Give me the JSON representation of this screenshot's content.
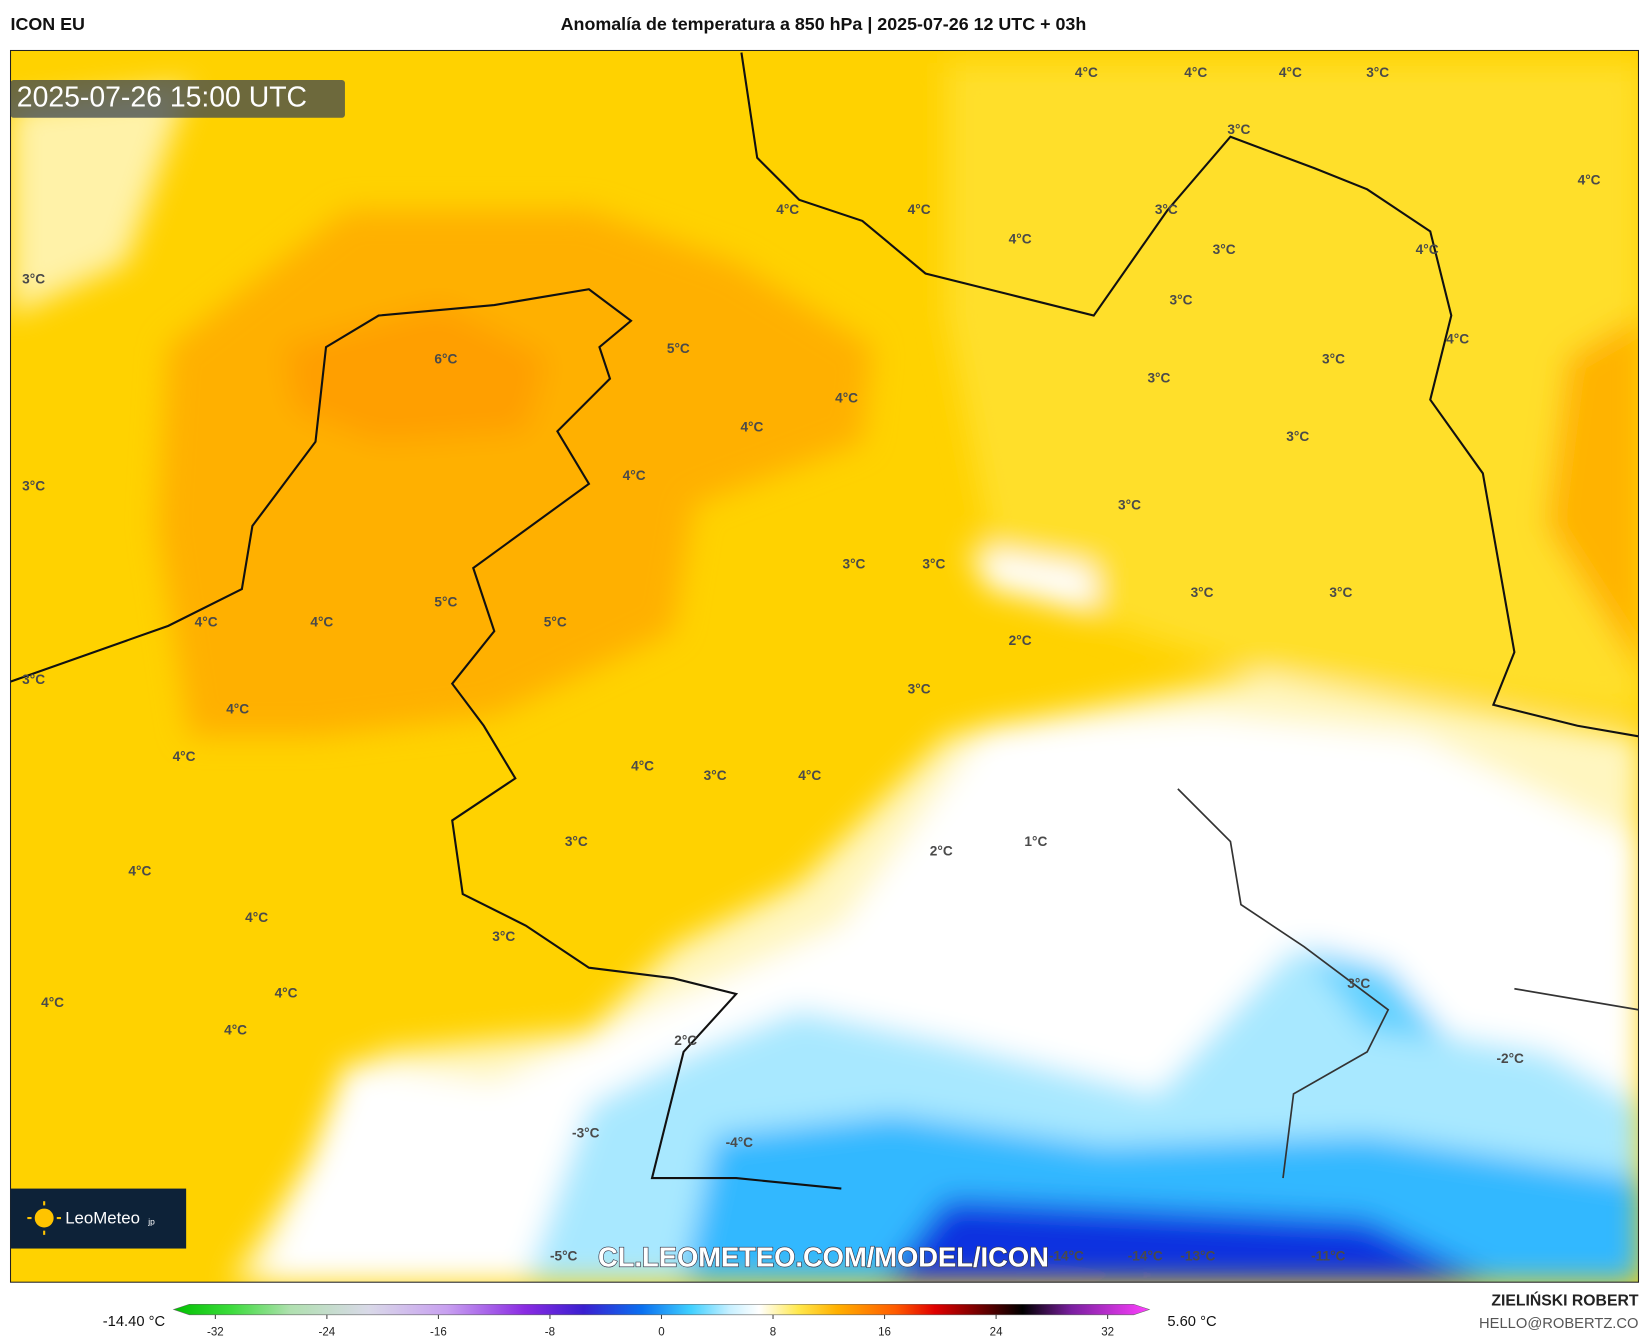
{
  "header": {
    "model": "ICON EU",
    "title": "Anomalía de temperatura a 850 hPa | 2025-07-26 12 UTC + 03h"
  },
  "valid_time": "2025-07-26 15:00 UTC",
  "map_labels": [
    "4°C",
    "4°C",
    "4°C",
    "3°C",
    "3°C",
    "4°C",
    "4°C",
    "4°C",
    "3°C",
    "4°C",
    "3°C",
    "4°C",
    "3°C",
    "3°C",
    "4°C",
    "6°C",
    "5°C",
    "3°C",
    "3°C",
    "4°C",
    "4°C",
    "3°C",
    "4°C",
    "3°C",
    "3°C",
    "3°C",
    "3°C",
    "3°C",
    "3°C",
    "5°C",
    "4°C",
    "4°C",
    "5°C",
    "2°C",
    "3°C",
    "3°C",
    "4°C",
    "4°C",
    "4°C",
    "3°C",
    "4°C",
    "3°C",
    "2°C",
    "1°C",
    "4°C",
    "4°C",
    "3°C",
    "3°C",
    "4°C",
    "4°C",
    "4°C",
    "2°C",
    "-2°C",
    "-3°C",
    "-4°C",
    "-5°C",
    "-14°C",
    "-14°C",
    "-13°C",
    "-11°C"
  ],
  "logo": {
    "name": "LeoMeteo",
    "suffix": "jp"
  },
  "watermark": "CL.LEOMETEO.COM/MODEL/ICON",
  "colorbar": {
    "min_label": "-14.40 °C",
    "max_label": "5.60 °C",
    "range": [
      -35,
      35
    ],
    "ticks": [
      -32,
      -24,
      -16,
      -8,
      0,
      8,
      16,
      24,
      32
    ]
  },
  "author": {
    "name": "ZIELIŃSKI ROBERT",
    "email": "HELLO@ROBERTZ.CO"
  }
}
